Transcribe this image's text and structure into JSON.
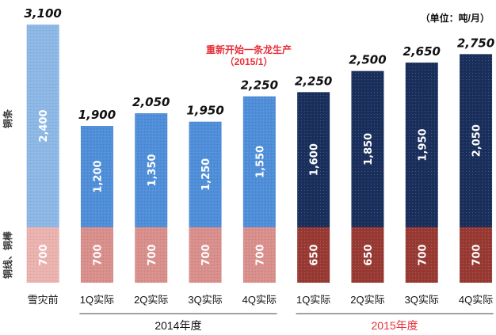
{
  "chart_data": {
    "type": "bar",
    "stacked": true,
    "unit_label": "（单位：吨/月）",
    "annotation": {
      "line1": "重新开始一条龙生产",
      "line2": "（2015/1）"
    },
    "categories": [
      "雪灾前",
      "1Q实际",
      "2Q实际",
      "3Q实际",
      "4Q实际",
      "1Q实际",
      "2Q实际",
      "3Q实际",
      "4Q实际"
    ],
    "groups": [
      {
        "label": "2014年度",
        "color": "#111111",
        "from": 1,
        "to": 4
      },
      {
        "label": "2015年度",
        "color": "#e8303a",
        "from": 5,
        "to": 8
      }
    ],
    "series": [
      {
        "name": "铜线、铜棒",
        "values": [
          700,
          700,
          700,
          700,
          700,
          650,
          650,
          700,
          700
        ]
      },
      {
        "name": "铜条",
        "values": [
          2400,
          1200,
          1350,
          1250,
          1550,
          1600,
          1850,
          1950,
          2050
        ]
      }
    ],
    "segment_labels": [
      [
        "700",
        "700",
        "700",
        "700",
        "700",
        "650",
        "650",
        "700",
        "700"
      ],
      [
        "2,400",
        "1,200",
        "1,350",
        "1,250",
        "1,550",
        "1,600",
        "1,850",
        "1,950",
        "2,050"
      ]
    ],
    "totals": [
      "3,100",
      "1,900",
      "2,050",
      "1,950",
      "2,250",
      "2,250",
      "2,500",
      "2,650",
      "2,750"
    ],
    "colors": {
      "bottom": [
        "#ebb3b0",
        "#d98f8c",
        "#d98f8c",
        "#d98f8c",
        "#d98f8c",
        "#983a33",
        "#983a33",
        "#983a33",
        "#983a33"
      ],
      "top": [
        "#8db8e6",
        "#4f8ed9",
        "#4f8ed9",
        "#4f8ed9",
        "#4f8ed9",
        "#1a2f5c",
        "#1a2f5c",
        "#1a2f5c",
        "#1a2f5c"
      ]
    },
    "bottom_band_value": 700,
    "ylim": [
      0,
      3100
    ],
    "grid": false,
    "legend": "none"
  }
}
